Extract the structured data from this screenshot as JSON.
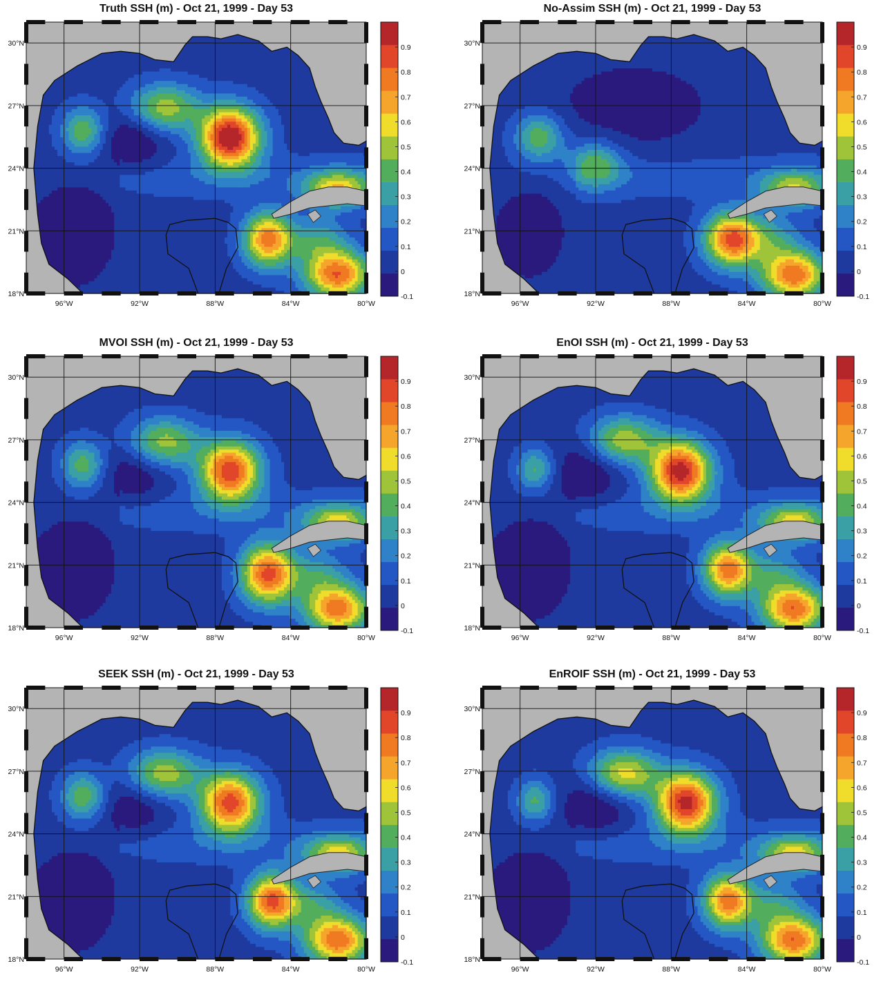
{
  "chart_data": [
    {
      "type": "heatmap",
      "title": "Truth SSH (m) - Oct 21, 1999 - Day 53",
      "x_ticks": [
        "96°W",
        "92°W",
        "88°W",
        "84°W",
        "80°W"
      ],
      "y_ticks": [
        "18°N",
        "21°N",
        "24°N",
        "27°N",
        "30°N"
      ],
      "colorbar_ticks": [
        "-0.1",
        "0",
        "0.1",
        "0.2",
        "0.3",
        "0.4",
        "0.5",
        "0.6",
        "0.7",
        "0.8",
        "0.9"
      ],
      "xlim": [
        -98,
        -80
      ],
      "ylim": [
        18,
        31
      ],
      "clim": [
        -0.1,
        1.0
      ],
      "features": [
        {
          "lon": -87.2,
          "lat": 25.5,
          "amp": 0.98,
          "sx": 1.1,
          "sy": 1.0
        },
        {
          "lon": -90.7,
          "lat": 26.9,
          "amp": 0.47,
          "sx": 1.3,
          "sy": 0.8
        },
        {
          "lon": -95.0,
          "lat": 25.8,
          "amp": 0.38,
          "sx": 0.8,
          "sy": 0.8
        },
        {
          "lon": -92.3,
          "lat": 25.4,
          "amp": -0.18,
          "sx": 1.2,
          "sy": 1.1
        },
        {
          "lon": -95.5,
          "lat": 21.0,
          "amp": -0.2,
          "sx": 1.4,
          "sy": 1.7
        },
        {
          "lon": -85.2,
          "lat": 20.6,
          "amp": 0.72,
          "sx": 0.9,
          "sy": 0.9
        },
        {
          "lon": -81.5,
          "lat": 18.9,
          "amp": 0.75,
          "sx": 1.2,
          "sy": 0.8
        },
        {
          "lon": -82.5,
          "lat": 20.5,
          "amp": 0.28,
          "sx": 1.1,
          "sy": 0.8
        },
        {
          "lon": -81.5,
          "lat": 23.0,
          "amp": 0.55,
          "sx": 1.2,
          "sy": 0.6
        }
      ]
    },
    {
      "type": "heatmap",
      "title": "No-Assim SSH (m) - Oct 21, 1999 - Day 53",
      "x_ticks": [
        "96°W",
        "92°W",
        "88°W",
        "84°W",
        "80°W"
      ],
      "y_ticks": [
        "18°N",
        "21°N",
        "24°N",
        "27°N",
        "30°N"
      ],
      "colorbar_ticks": [
        "-0.1",
        "0",
        "0.1",
        "0.2",
        "0.3",
        "0.4",
        "0.5",
        "0.6",
        "0.7",
        "0.8",
        "0.9"
      ],
      "xlim": [
        -98,
        -80
      ],
      "ylim": [
        18,
        31
      ],
      "clim": [
        -0.1,
        1.0
      ],
      "features": [
        {
          "lon": -95.0,
          "lat": 25.5,
          "amp": 0.38,
          "sx": 0.9,
          "sy": 0.8
        },
        {
          "lon": -92.0,
          "lat": 24.2,
          "amp": 0.34,
          "sx": 1.0,
          "sy": 0.8
        },
        {
          "lon": -90.0,
          "lat": 27.0,
          "amp": -0.12,
          "sx": 3.0,
          "sy": 1.5
        },
        {
          "lon": -95.5,
          "lat": 21.0,
          "amp": -0.15,
          "sx": 1.3,
          "sy": 1.6
        },
        {
          "lon": -84.8,
          "lat": 20.6,
          "amp": 0.78,
          "sx": 1.0,
          "sy": 0.9
        },
        {
          "lon": -81.5,
          "lat": 18.9,
          "amp": 0.75,
          "sx": 1.2,
          "sy": 0.8
        },
        {
          "lon": -82.7,
          "lat": 20.6,
          "amp": 0.25,
          "sx": 1.1,
          "sy": 0.8
        },
        {
          "lon": -81.5,
          "lat": 23.0,
          "amp": 0.45,
          "sx": 1.2,
          "sy": 0.6
        }
      ]
    },
    {
      "type": "heatmap",
      "title": "MVOI SSH (m) - Oct 21, 1999 - Day 53",
      "x_ticks": [
        "96°W",
        "92°W",
        "88°W",
        "84°W",
        "80°W"
      ],
      "y_ticks": [
        "18°N",
        "21°N",
        "24°N",
        "27°N",
        "30°N"
      ],
      "colorbar_ticks": [
        "-0.1",
        "0",
        "0.1",
        "0.2",
        "0.3",
        "0.4",
        "0.5",
        "0.6",
        "0.7",
        "0.8",
        "0.9"
      ],
      "xlim": [
        -98,
        -80
      ],
      "ylim": [
        18,
        31
      ],
      "clim": [
        -0.1,
        1.0
      ],
      "features": [
        {
          "lon": -87.2,
          "lat": 25.5,
          "amp": 0.85,
          "sx": 1.1,
          "sy": 1.0
        },
        {
          "lon": -90.7,
          "lat": 26.9,
          "amp": 0.45,
          "sx": 1.3,
          "sy": 0.8
        },
        {
          "lon": -95.0,
          "lat": 25.8,
          "amp": 0.36,
          "sx": 0.8,
          "sy": 0.8
        },
        {
          "lon": -92.3,
          "lat": 25.4,
          "amp": -0.15,
          "sx": 1.2,
          "sy": 1.1
        },
        {
          "lon": -95.5,
          "lat": 21.0,
          "amp": -0.2,
          "sx": 1.4,
          "sy": 1.7
        },
        {
          "lon": -85.2,
          "lat": 20.6,
          "amp": 0.8,
          "sx": 1.0,
          "sy": 1.0
        },
        {
          "lon": -81.5,
          "lat": 18.9,
          "amp": 0.72,
          "sx": 1.2,
          "sy": 0.8
        },
        {
          "lon": -82.5,
          "lat": 20.5,
          "amp": 0.25,
          "sx": 1.1,
          "sy": 0.8
        },
        {
          "lon": -81.5,
          "lat": 23.0,
          "amp": 0.5,
          "sx": 1.2,
          "sy": 0.6
        }
      ]
    },
    {
      "type": "heatmap",
      "title": "EnOI SSH (m) - Oct 21, 1999 - Day 53",
      "x_ticks": [
        "96°W",
        "92°W",
        "88°W",
        "84°W",
        "80°W"
      ],
      "y_ticks": [
        "18°N",
        "21°N",
        "24°N",
        "27°N",
        "30°N"
      ],
      "colorbar_ticks": [
        "-0.1",
        "0",
        "0.1",
        "0.2",
        "0.3",
        "0.4",
        "0.5",
        "0.6",
        "0.7",
        "0.8",
        "0.9"
      ],
      "xlim": [
        -98,
        -80
      ],
      "ylim": [
        18,
        31
      ],
      "clim": [
        -0.1,
        1.0
      ],
      "features": [
        {
          "lon": -87.5,
          "lat": 25.5,
          "amp": 0.92,
          "sx": 1.1,
          "sy": 1.0
        },
        {
          "lon": -90.5,
          "lat": 27.0,
          "amp": 0.47,
          "sx": 1.3,
          "sy": 0.8
        },
        {
          "lon": -95.2,
          "lat": 25.6,
          "amp": 0.33,
          "sx": 0.7,
          "sy": 0.7
        },
        {
          "lon": -92.5,
          "lat": 25.4,
          "amp": -0.18,
          "sx": 1.2,
          "sy": 1.1
        },
        {
          "lon": -95.5,
          "lat": 21.0,
          "amp": -0.2,
          "sx": 1.4,
          "sy": 1.7
        },
        {
          "lon": -85.0,
          "lat": 20.8,
          "amp": 0.72,
          "sx": 0.9,
          "sy": 0.9
        },
        {
          "lon": -81.5,
          "lat": 18.9,
          "amp": 0.75,
          "sx": 1.2,
          "sy": 0.8
        },
        {
          "lon": -82.5,
          "lat": 20.6,
          "amp": 0.25,
          "sx": 1.1,
          "sy": 0.8
        },
        {
          "lon": -81.5,
          "lat": 23.0,
          "amp": 0.5,
          "sx": 1.2,
          "sy": 0.6
        }
      ]
    },
    {
      "type": "heatmap",
      "title": "SEEK SSH (m) - Oct 21, 1999 - Day 53",
      "x_ticks": [
        "96°W",
        "92°W",
        "88°W",
        "84°W",
        "80°W"
      ],
      "y_ticks": [
        "18°N",
        "21°N",
        "24°N",
        "27°N",
        "30°N"
      ],
      "colorbar_ticks": [
        "-0.1",
        "0",
        "0.1",
        "0.2",
        "0.3",
        "0.4",
        "0.5",
        "0.6",
        "0.7",
        "0.8",
        "0.9"
      ],
      "xlim": [
        -98,
        -80
      ],
      "ylim": [
        18,
        31
      ],
      "clim": [
        -0.1,
        1.0
      ],
      "features": [
        {
          "lon": -87.2,
          "lat": 25.5,
          "amp": 0.82,
          "sx": 1.1,
          "sy": 1.0
        },
        {
          "lon": -90.7,
          "lat": 26.9,
          "amp": 0.47,
          "sx": 1.3,
          "sy": 0.8
        },
        {
          "lon": -95.0,
          "lat": 25.8,
          "amp": 0.38,
          "sx": 0.8,
          "sy": 0.8
        },
        {
          "lon": -92.3,
          "lat": 25.2,
          "amp": -0.15,
          "sx": 1.2,
          "sy": 1.1
        },
        {
          "lon": -95.5,
          "lat": 21.0,
          "amp": -0.2,
          "sx": 1.4,
          "sy": 1.7
        },
        {
          "lon": -85.0,
          "lat": 20.8,
          "amp": 0.78,
          "sx": 0.9,
          "sy": 0.9
        },
        {
          "lon": -81.5,
          "lat": 18.9,
          "amp": 0.75,
          "sx": 1.2,
          "sy": 0.8
        },
        {
          "lon": -82.8,
          "lat": 20.6,
          "amp": 0.25,
          "sx": 1.1,
          "sy": 0.8
        },
        {
          "lon": -81.5,
          "lat": 23.0,
          "amp": 0.5,
          "sx": 1.2,
          "sy": 0.6
        }
      ]
    },
    {
      "type": "heatmap",
      "title": "EnROIF SSH (m) - Oct 21, 1999 - Day 53",
      "x_ticks": [
        "96°W",
        "92°W",
        "88°W",
        "84°W",
        "80°W"
      ],
      "y_ticks": [
        "18°N",
        "21°N",
        "24°N",
        "27°N",
        "30°N"
      ],
      "colorbar_ticks": [
        "-0.1",
        "0",
        "0.1",
        "0.2",
        "0.3",
        "0.4",
        "0.5",
        "0.6",
        "0.7",
        "0.8",
        "0.9"
      ],
      "xlim": [
        -98,
        -80
      ],
      "ylim": [
        18,
        31
      ],
      "clim": [
        -0.1,
        1.0
      ],
      "features": [
        {
          "lon": -87.2,
          "lat": 25.5,
          "amp": 0.9,
          "sx": 1.1,
          "sy": 1.0
        },
        {
          "lon": -90.5,
          "lat": 26.9,
          "amp": 0.55,
          "sx": 1.3,
          "sy": 0.8
        },
        {
          "lon": -95.2,
          "lat": 25.6,
          "amp": 0.33,
          "sx": 0.7,
          "sy": 0.7
        },
        {
          "lon": -92.0,
          "lat": 25.4,
          "amp": -0.18,
          "sx": 1.3,
          "sy": 1.1
        },
        {
          "lon": -95.5,
          "lat": 21.0,
          "amp": -0.2,
          "sx": 1.4,
          "sy": 1.7
        },
        {
          "lon": -85.0,
          "lat": 20.8,
          "amp": 0.72,
          "sx": 0.9,
          "sy": 0.9
        },
        {
          "lon": -81.5,
          "lat": 18.9,
          "amp": 0.75,
          "sx": 1.2,
          "sy": 0.8
        },
        {
          "lon": -82.5,
          "lat": 20.6,
          "amp": 0.25,
          "sx": 1.1,
          "sy": 0.8
        },
        {
          "lon": -81.5,
          "lat": 23.0,
          "amp": 0.5,
          "sx": 1.2,
          "sy": 0.6
        }
      ]
    }
  ],
  "colors": {
    "ocean_background": "#1f3a9e",
    "land": "#b4b4b4",
    "colormap": [
      "#2a1a7d",
      "#1f3a9e",
      "#2457c4",
      "#2f82c8",
      "#3ba0a6",
      "#52ad5c",
      "#9fc43a",
      "#f0dc2a",
      "#f6a52c",
      "#f07a22",
      "#e2462a",
      "#b4262a"
    ]
  }
}
